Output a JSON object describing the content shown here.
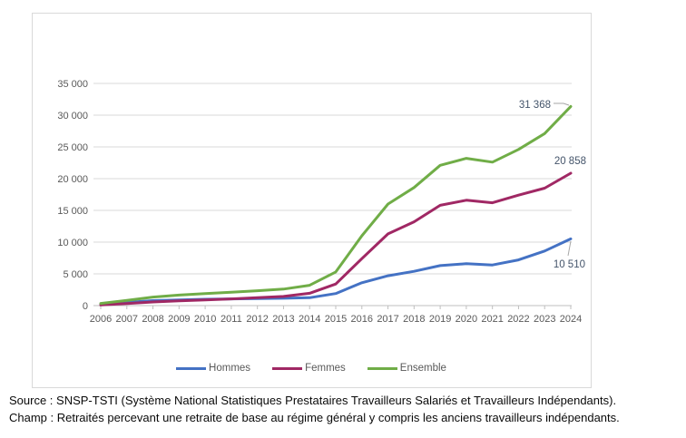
{
  "chart_data": {
    "type": "line",
    "categories": [
      "2006",
      "2007",
      "2008",
      "2009",
      "2010",
      "2011",
      "2012",
      "2013",
      "2014",
      "2015",
      "2016",
      "2017",
      "2018",
      "2019",
      "2020",
      "2021",
      "2022",
      "2023",
      "2024"
    ],
    "series": [
      {
        "name": "Hommes",
        "color": "#4472c4",
        "end_label": "10 510",
        "values": [
          250,
          500,
          780,
          900,
          1000,
          1050,
          1100,
          1150,
          1250,
          1900,
          3600,
          4700,
          5400,
          6300,
          6600,
          6400,
          7200,
          8600,
          10510
        ]
      },
      {
        "name": "Femmes",
        "color": "#a02864",
        "end_label": "20 858",
        "values": [
          100,
          330,
          570,
          750,
          900,
          1050,
          1250,
          1450,
          1950,
          3400,
          7400,
          11300,
          13200,
          15800,
          16600,
          16200,
          17400,
          18500,
          20858
        ]
      },
      {
        "name": "Ensemble",
        "color": "#70ad47",
        "end_label": "31 368",
        "values": [
          350,
          830,
          1350,
          1650,
          1900,
          2100,
          2350,
          2600,
          3200,
          5300,
          11000,
          16000,
          18600,
          22100,
          23200,
          22600,
          24600,
          27100,
          31368
        ]
      }
    ],
    "y_axis": {
      "min": 0,
      "max": 35000,
      "tick_interval": 5000,
      "tick_labels": [
        "0",
        "5 000",
        "10 000",
        "15 000",
        "20 000",
        "25 000",
        "30 000",
        "35 000"
      ]
    },
    "x_axis_label": "",
    "ylabel": "",
    "legend_position": "bottom",
    "grid": true
  },
  "notes": {
    "source": "Source : SNSP-TSTI (Système National Statistiques Prestataires Travailleurs Salariés et Travailleurs Indépendants).",
    "champ": "Champ : Retraités percevant une retraite de base au régime général y compris les anciens travailleurs indépendants."
  },
  "colors": {
    "gridline": "#d9d9d9",
    "axis": "#bfbfbf",
    "axis_label": "#595959",
    "data_label": "#44546a",
    "leader_line": "#a6a6a6",
    "frame_border": "#d9d9d9"
  }
}
